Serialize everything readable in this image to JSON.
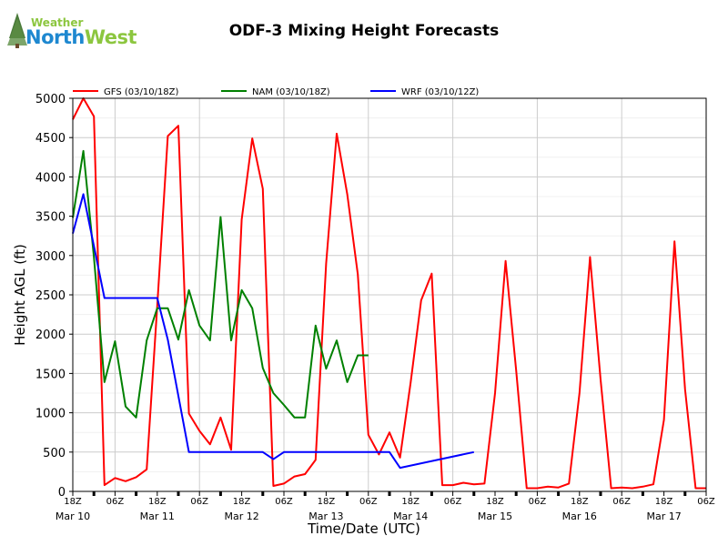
{
  "logo": {
    "word1": "Weather",
    "word2a": "North",
    "word2b": "West"
  },
  "chart_data": {
    "type": "line",
    "title": "ODF-3 Mixing Height Forecasts",
    "xlabel": "Time/Date (UTC)",
    "ylabel": "Height AGL (ft)",
    "ylim": [
      0,
      5000
    ],
    "xlim_hours": [
      0,
      180
    ],
    "x_start": "Mar 10 18Z",
    "yticks": [
      0,
      500,
      1000,
      1500,
      2000,
      2500,
      3000,
      3500,
      4000,
      4500,
      5000
    ],
    "xticks": [
      {
        "h": 0,
        "label": "18Z"
      },
      {
        "h": 12,
        "label": "06Z"
      },
      {
        "h": 24,
        "label": "18Z"
      },
      {
        "h": 36,
        "label": "06Z"
      },
      {
        "h": 48,
        "label": "18Z"
      },
      {
        "h": 60,
        "label": "06Z"
      },
      {
        "h": 72,
        "label": "18Z"
      },
      {
        "h": 84,
        "label": "06Z"
      },
      {
        "h": 96,
        "label": "18Z"
      },
      {
        "h": 108,
        "label": "06Z"
      },
      {
        "h": 120,
        "label": "18Z"
      },
      {
        "h": 132,
        "label": "06Z"
      },
      {
        "h": 144,
        "label": "18Z"
      },
      {
        "h": 156,
        "label": "06Z"
      },
      {
        "h": 168,
        "label": "18Z"
      },
      {
        "h": 180,
        "label": "06Z"
      }
    ],
    "date_labels": [
      {
        "h": 0,
        "label": "Mar 10"
      },
      {
        "h": 24,
        "label": "Mar 11"
      },
      {
        "h": 48,
        "label": "Mar 12"
      },
      {
        "h": 72,
        "label": "Mar 13"
      },
      {
        "h": 96,
        "label": "Mar 14"
      },
      {
        "h": 120,
        "label": "Mar 15"
      },
      {
        "h": 144,
        "label": "Mar 16"
      },
      {
        "h": 168,
        "label": "Mar 17"
      }
    ],
    "legend_position": "top",
    "series": [
      {
        "name": "GFS (03/10/18Z)",
        "color": "#ff0000",
        "x": [
          0,
          3,
          6,
          9,
          12,
          15,
          18,
          21,
          24,
          27,
          30,
          33,
          36,
          39,
          42,
          45,
          48,
          51,
          54,
          57,
          60,
          63,
          66,
          69,
          72,
          75,
          78,
          81,
          84,
          87,
          90,
          93,
          96,
          99,
          102,
          105,
          108,
          111,
          114,
          117,
          120,
          123,
          126,
          129,
          132,
          135,
          138,
          141,
          144,
          147,
          150,
          153,
          156,
          159,
          162,
          165,
          168,
          171,
          174,
          177,
          180
        ],
        "values": [
          4730,
          5000,
          4770,
          80,
          170,
          130,
          180,
          280,
          2360,
          4520,
          4650,
          990,
          770,
          600,
          940,
          530,
          3460,
          4490,
          3850,
          70,
          100,
          190,
          220,
          400,
          2900,
          4550,
          3780,
          2760,
          720,
          470,
          750,
          430,
          1380,
          2430,
          2770,
          80,
          80,
          110,
          90,
          100,
          1250,
          2930,
          1540,
          40,
          40,
          60,
          50,
          100,
          1250,
          2980,
          1420,
          40,
          50,
          40,
          60,
          90,
          910,
          3180,
          1300,
          40,
          40
        ]
      },
      {
        "name": "NAM (03/10/18Z)",
        "color": "#008000",
        "x": [
          0,
          3,
          6,
          9,
          12,
          15,
          18,
          21,
          24,
          27,
          30,
          33,
          36,
          39,
          42,
          45,
          48,
          51,
          54,
          57,
          60,
          63,
          66,
          69,
          72,
          75,
          78,
          81,
          84
        ],
        "values": [
          3480,
          4330,
          2980,
          1390,
          1910,
          1080,
          940,
          1920,
          2330,
          2330,
          1930,
          2560,
          2110,
          1920,
          3490,
          1920,
          2560,
          2330,
          1570,
          1250,
          1100,
          940,
          940,
          2110,
          1560,
          1920,
          1390,
          1730,
          1730
        ]
      },
      {
        "name": "WRF (03/10/12Z)",
        "color": "#0000ff",
        "x": [
          0,
          3,
          9,
          24,
          27,
          33,
          36,
          54,
          57,
          60,
          90,
          93,
          114
        ],
        "values": [
          3280,
          3780,
          2460,
          2460,
          1930,
          500,
          500,
          500,
          410,
          500,
          500,
          300,
          500
        ]
      }
    ]
  }
}
